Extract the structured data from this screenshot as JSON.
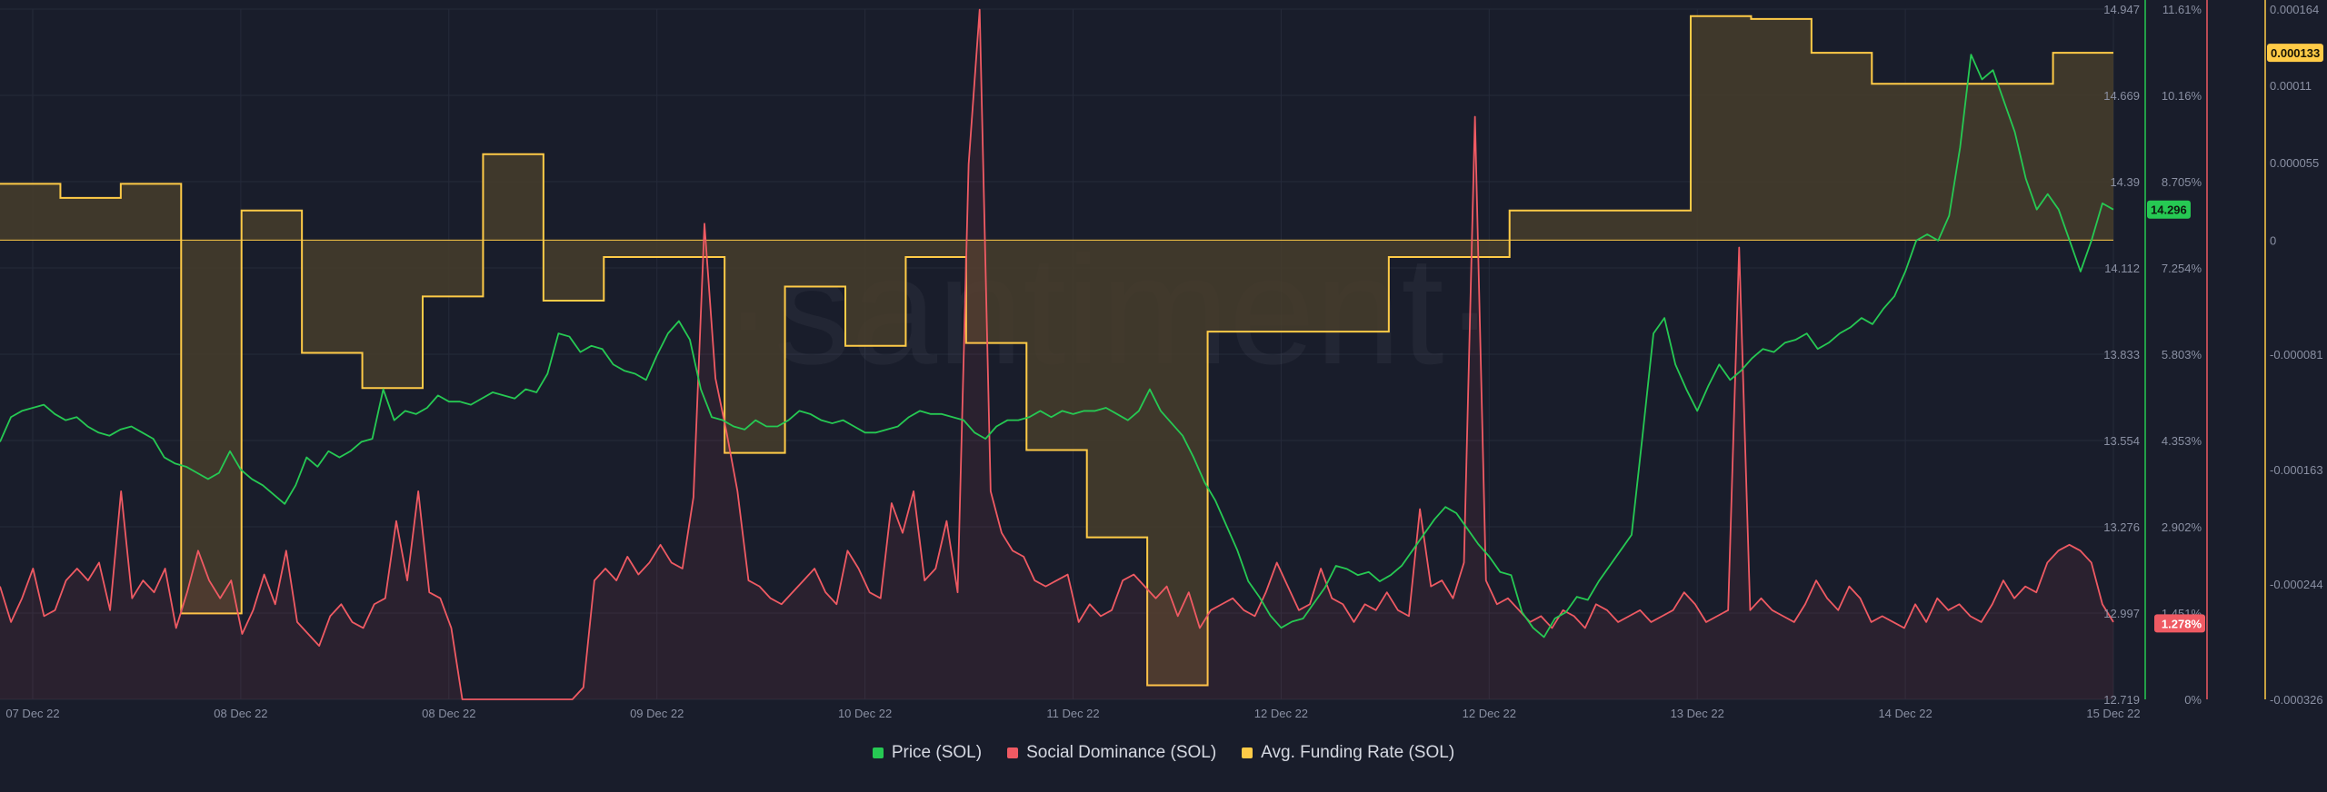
{
  "watermark": "·santiment·",
  "colors": {
    "background": "#191d2b",
    "grid": "#252a3a",
    "price": "#26c953",
    "social": "#ef5a63",
    "funding": "#ffcb47",
    "funding_fill": "#463d2c",
    "axis_text": "#8a90a3"
  },
  "legend": [
    {
      "label": "Price (SOL)",
      "color": "#26c953"
    },
    {
      "label": "Social Dominance (SOL)",
      "color": "#ef5a63"
    },
    {
      "label": "Avg. Funding Rate (SOL)",
      "color": "#ffcb47"
    }
  ],
  "chart_data": {
    "type": "line",
    "x_tick_labels": [
      "07 Dec 22",
      "08 Dec 22",
      "08 Dec 22",
      "09 Dec 22",
      "10 Dec 22",
      "11 Dec 22",
      "12 Dec 22",
      "12 Dec 22",
      "13 Dec 22",
      "14 Dec 22",
      "15 Dec 22"
    ],
    "grid": true,
    "legend_position": "bottom",
    "axes": {
      "price": {
        "ticks": [
          "14.947",
          "14.669",
          "14.39",
          "14.112",
          "13.833",
          "13.554",
          "13.276",
          "12.997",
          "12.719"
        ],
        "range": [
          12.719,
          14.947
        ],
        "current": "14.296"
      },
      "social_dominance": {
        "ticks": [
          "11.61%",
          "10.16%",
          "8.705%",
          "7.254%",
          "5.803%",
          "4.353%",
          "2.902%",
          "1.451%",
          "0%"
        ],
        "range": [
          0,
          11.61
        ],
        "current": "1.278%"
      },
      "funding_rate": {
        "ticks": [
          "0.000164",
          "0.00011",
          "0.000055",
          "0",
          "-0.000081",
          "-0.000163",
          "-0.000244",
          "-0.000326"
        ],
        "ytick_values": [
          0.000164,
          0.00011,
          5.5e-05,
          0,
          -8.1e-05,
          -0.000163,
          -0.000244,
          -0.000326
        ],
        "range": [
          -0.000326,
          0.000164
        ],
        "current": "0.000133"
      }
    },
    "series": [
      {
        "name": "Price (SOL)",
        "axis": "price",
        "step": "0.5",
        "values": [
          13.55,
          13.63,
          13.65,
          13.66,
          13.67,
          13.64,
          13.62,
          13.63,
          13.6,
          13.58,
          13.57,
          13.59,
          13.6,
          13.58,
          13.56,
          13.5,
          13.48,
          13.47,
          13.45,
          13.43,
          13.45,
          13.52,
          13.46,
          13.43,
          13.41,
          13.38,
          13.35,
          13.41,
          13.5,
          13.47,
          13.52,
          13.5,
          13.52,
          13.55,
          13.56,
          13.72,
          13.62,
          13.65,
          13.64,
          13.66,
          13.7,
          13.68,
          13.68,
          13.67,
          13.69,
          13.71,
          13.7,
          13.69,
          13.72,
          13.71,
          13.77,
          13.9,
          13.89,
          13.84,
          13.86,
          13.85,
          13.8,
          13.78,
          13.77,
          13.75,
          13.83,
          13.9,
          13.94,
          13.88,
          13.72,
          13.63,
          13.62,
          13.6,
          13.59,
          13.62,
          13.6,
          13.6,
          13.62,
          13.65,
          13.64,
          13.62,
          13.61,
          13.62,
          13.6,
          13.58,
          13.58,
          13.59,
          13.6,
          13.63,
          13.65,
          13.64,
          13.64,
          13.63,
          13.62,
          13.58,
          13.56,
          13.6,
          13.62,
          13.62,
          13.63,
          13.65,
          13.63,
          13.65,
          13.64,
          13.65,
          13.65,
          13.66,
          13.64,
          13.62,
          13.65,
          13.72,
          13.65,
          13.61,
          13.57,
          13.5,
          13.42,
          13.36,
          13.28,
          13.2,
          13.1,
          13.05,
          12.99,
          12.95,
          12.97,
          12.98,
          13.03,
          13.08,
          13.15,
          13.14,
          13.12,
          13.13,
          13.1,
          13.12,
          13.15,
          13.2,
          13.25,
          13.3,
          13.34,
          13.32,
          13.27,
          13.22,
          13.18,
          13.13,
          13.12,
          13.0,
          12.95,
          12.92,
          12.98,
          13.0,
          13.05,
          13.04,
          13.1,
          13.15,
          13.2,
          13.25,
          13.57,
          13.9,
          13.95,
          13.8,
          13.72,
          13.65,
          13.73,
          13.8,
          13.75,
          13.78,
          13.82,
          13.85,
          13.84,
          13.87,
          13.88,
          13.9,
          13.85,
          13.87,
          13.9,
          13.92,
          13.95,
          13.93,
          13.98,
          14.02,
          14.1,
          14.2,
          14.22,
          14.2,
          14.28,
          14.5,
          14.8,
          14.72,
          14.75,
          14.65,
          14.55,
          14.4,
          14.3,
          14.35,
          14.3,
          14.2,
          14.1,
          14.2,
          14.32,
          14.3
        ]
      },
      {
        "name": "Social Dominance (SOL)",
        "axis": "social_dominance",
        "step": "0.5",
        "values": [
          1.9,
          1.3,
          1.7,
          2.2,
          1.4,
          1.5,
          2.0,
          2.2,
          2.0,
          2.3,
          1.5,
          3.5,
          1.7,
          2.0,
          1.8,
          2.2,
          1.2,
          1.8,
          2.5,
          2.0,
          1.7,
          2.0,
          1.1,
          1.5,
          2.1,
          1.6,
          2.5,
          1.3,
          1.1,
          0.9,
          1.4,
          1.6,
          1.3,
          1.2,
          1.6,
          1.7,
          3.0,
          2.0,
          3.5,
          1.8,
          1.7,
          1.2,
          0.0,
          0.0,
          0.0,
          0.0,
          0.0,
          0.0,
          0.0,
          0.0,
          0.0,
          0.0,
          0.0,
          0.2,
          2.0,
          2.2,
          2.0,
          2.4,
          2.1,
          2.3,
          2.6,
          2.3,
          2.2,
          3.4,
          8.0,
          5.4,
          4.5,
          3.5,
          2.0,
          1.9,
          1.7,
          1.6,
          1.8,
          2.0,
          2.2,
          1.8,
          1.6,
          2.5,
          2.2,
          1.8,
          1.7,
          3.3,
          2.8,
          3.5,
          2.0,
          2.2,
          3.0,
          1.8,
          9.0,
          11.6,
          3.5,
          2.8,
          2.5,
          2.4,
          2.0,
          1.9,
          2.0,
          2.1,
          1.3,
          1.6,
          1.4,
          1.5,
          2.0,
          2.1,
          1.9,
          1.7,
          1.9,
          1.4,
          1.8,
          1.2,
          1.5,
          1.6,
          1.7,
          1.5,
          1.4,
          1.8,
          2.3,
          1.9,
          1.5,
          1.6,
          2.2,
          1.7,
          1.6,
          1.3,
          1.6,
          1.5,
          1.8,
          1.5,
          1.4,
          3.2,
          1.9,
          2.0,
          1.7,
          2.3,
          9.8,
          2.0,
          1.6,
          1.7,
          1.5,
          1.3,
          1.4,
          1.2,
          1.5,
          1.4,
          1.2,
          1.6,
          1.5,
          1.3,
          1.4,
          1.5,
          1.3,
          1.4,
          1.5,
          1.8,
          1.6,
          1.3,
          1.4,
          1.5,
          7.6,
          1.5,
          1.7,
          1.5,
          1.4,
          1.3,
          1.6,
          2.0,
          1.7,
          1.5,
          1.9,
          1.7,
          1.3,
          1.4,
          1.3,
          1.2,
          1.6,
          1.3,
          1.7,
          1.5,
          1.6,
          1.4,
          1.3,
          1.6,
          2.0,
          1.7,
          1.9,
          1.8,
          2.3,
          2.5,
          2.6,
          2.5,
          2.3,
          1.6,
          1.3
        ]
      },
      {
        "name": "Avg. Funding Rate (SOL)",
        "axis": "funding_rate",
        "step": "8h",
        "values": [
          4e-05,
          3e-05,
          4e-05,
          -0.000265,
          2.1e-05,
          -8e-05,
          -0.000105,
          -4e-05,
          6.1e-05,
          -4.3e-05,
          -1.2e-05,
          -1.2e-05,
          -0.000151,
          -3.3e-05,
          -7.5e-05,
          -1.2e-05,
          -7.3e-05,
          -0.000149,
          -0.000211,
          -0.000316,
          -6.5e-05,
          -6.5e-05,
          -6.5e-05,
          -1.2e-05,
          -1.2e-05,
          2.1e-05,
          2.1e-05,
          2.1e-05,
          0.000159,
          0.000157,
          0.000133,
          0.000111,
          0.000111,
          0.000111,
          0.000133
        ]
      }
    ]
  }
}
